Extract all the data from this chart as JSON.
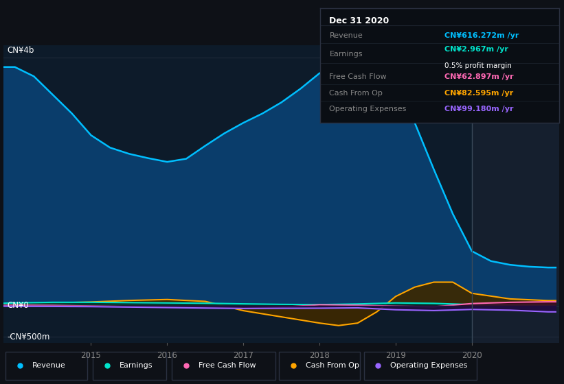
{
  "bg_color": "#0e1117",
  "plot_bg_color": "#0d1b2a",
  "forecast_bg_color": "#151f2e",
  "ylabel_cn4b": "CN¥4b",
  "ylabel_cn0": "CN¥0",
  "ylabel_cnneg500m": "-CN¥500m",
  "x_ticks": [
    2015,
    2016,
    2017,
    2018,
    2019,
    2020
  ],
  "forecast_start": 2020.0,
  "revenue": {
    "x": [
      2013.85,
      2014.0,
      2014.25,
      2014.5,
      2014.75,
      2015.0,
      2015.25,
      2015.5,
      2015.75,
      2016.0,
      2016.25,
      2016.5,
      2016.75,
      2017.0,
      2017.25,
      2017.5,
      2017.75,
      2018.0,
      2018.1,
      2018.25,
      2018.5,
      2018.75,
      2019.0,
      2019.25,
      2019.5,
      2019.75,
      2020.0,
      2020.25,
      2020.5,
      2020.75,
      2021.0,
      2021.1
    ],
    "y": [
      3850,
      3850,
      3700,
      3400,
      3100,
      2750,
      2550,
      2450,
      2380,
      2320,
      2370,
      2580,
      2780,
      2950,
      3100,
      3280,
      3500,
      3750,
      3780,
      3780,
      3720,
      3620,
      3420,
      2950,
      2200,
      1480,
      880,
      720,
      660,
      630,
      616,
      616
    ],
    "color": "#00bfff",
    "fill_color": "#0a3d6b",
    "label": "Revenue"
  },
  "earnings": {
    "x": [
      2013.85,
      2014.0,
      2014.5,
      2015.0,
      2015.5,
      2016.0,
      2016.5,
      2017.0,
      2017.5,
      2018.0,
      2018.5,
      2019.0,
      2019.5,
      2020.0,
      2020.5,
      2021.0,
      2021.1
    ],
    "y": [
      40,
      45,
      55,
      55,
      50,
      45,
      40,
      30,
      22,
      18,
      28,
      45,
      38,
      18,
      8,
      3,
      3
    ],
    "color": "#00e5cc",
    "fill_color": "#003d35",
    "label": "Earnings"
  },
  "free_cash_flow": {
    "x": [
      2013.85,
      2014.0,
      2014.5,
      2015.0,
      2015.5,
      2016.0,
      2016.5,
      2017.0,
      2017.5,
      2018.0,
      2018.5,
      2019.0,
      2019.5,
      2020.0,
      2020.5,
      2021.0,
      2021.1
    ],
    "y": [
      5,
      8,
      5,
      -5,
      -15,
      -15,
      -25,
      -40,
      -25,
      15,
      8,
      -8,
      -18,
      35,
      55,
      63,
      63
    ],
    "color": "#ff69b4",
    "fill_color": "#3d0a1e",
    "label": "Free Cash Flow"
  },
  "cash_from_op": {
    "x": [
      2013.85,
      2014.0,
      2014.5,
      2015.0,
      2015.5,
      2016.0,
      2016.5,
      2017.0,
      2017.5,
      2018.0,
      2018.25,
      2018.5,
      2018.75,
      2019.0,
      2019.25,
      2019.5,
      2019.75,
      2020.0,
      2020.5,
      2021.0,
      2021.1
    ],
    "y": [
      20,
      25,
      45,
      60,
      85,
      100,
      70,
      -80,
      -180,
      -280,
      -320,
      -280,
      -100,
      150,
      300,
      380,
      380,
      200,
      110,
      83,
      83
    ],
    "color": "#ffa500",
    "fill_color": "#3d2800",
    "label": "Cash From Op"
  },
  "operating_expenses": {
    "x": [
      2013.85,
      2014.0,
      2014.5,
      2015.0,
      2015.5,
      2016.0,
      2016.5,
      2017.0,
      2017.5,
      2018.0,
      2018.5,
      2019.0,
      2019.5,
      2020.0,
      2020.5,
      2021.0,
      2021.1
    ],
    "y": [
      -8,
      -10,
      -12,
      -15,
      -22,
      -30,
      -38,
      -45,
      -42,
      -40,
      -35,
      -65,
      -78,
      -60,
      -72,
      -99,
      -99
    ],
    "color": "#9966ff",
    "fill_color": "#200d40",
    "label": "Operating Expenses"
  },
  "tooltip": {
    "date": "Dec 31 2020",
    "revenue_label": "Revenue",
    "revenue_val": "CN¥616.272m",
    "earnings_label": "Earnings",
    "earnings_val": "CN¥2.967m",
    "profit_margin": "0.5% profit margin",
    "fcf_label": "Free Cash Flow",
    "fcf_val": "CN¥62.897m",
    "cash_label": "Cash From Op",
    "cash_from_op_val": "CN¥82.595m",
    "opex_label": "Operating Expenses",
    "op_exp_val": "CN¥99.180m",
    "revenue_color": "#00bfff",
    "earnings_color": "#00e5cc",
    "fcf_color": "#ff69b4",
    "cash_color": "#ffa500",
    "opex_color": "#9966ff",
    "label_color": "#888888",
    "bg_color": "#0a0e14",
    "border_color": "#2a3040",
    "divider_color": "#1e2530"
  },
  "legend_items": [
    {
      "color": "#00bfff",
      "label": "Revenue"
    },
    {
      "color": "#00e5cc",
      "label": "Earnings"
    },
    {
      "color": "#ff69b4",
      "label": "Free Cash Flow"
    },
    {
      "color": "#ffa500",
      "label": "Cash From Op"
    },
    {
      "color": "#9966ff",
      "label": "Operating Expenses"
    }
  ],
  "ylim_min": -600,
  "ylim_max": 4200,
  "xlim_min": 2013.85,
  "xlim_max": 2021.15
}
